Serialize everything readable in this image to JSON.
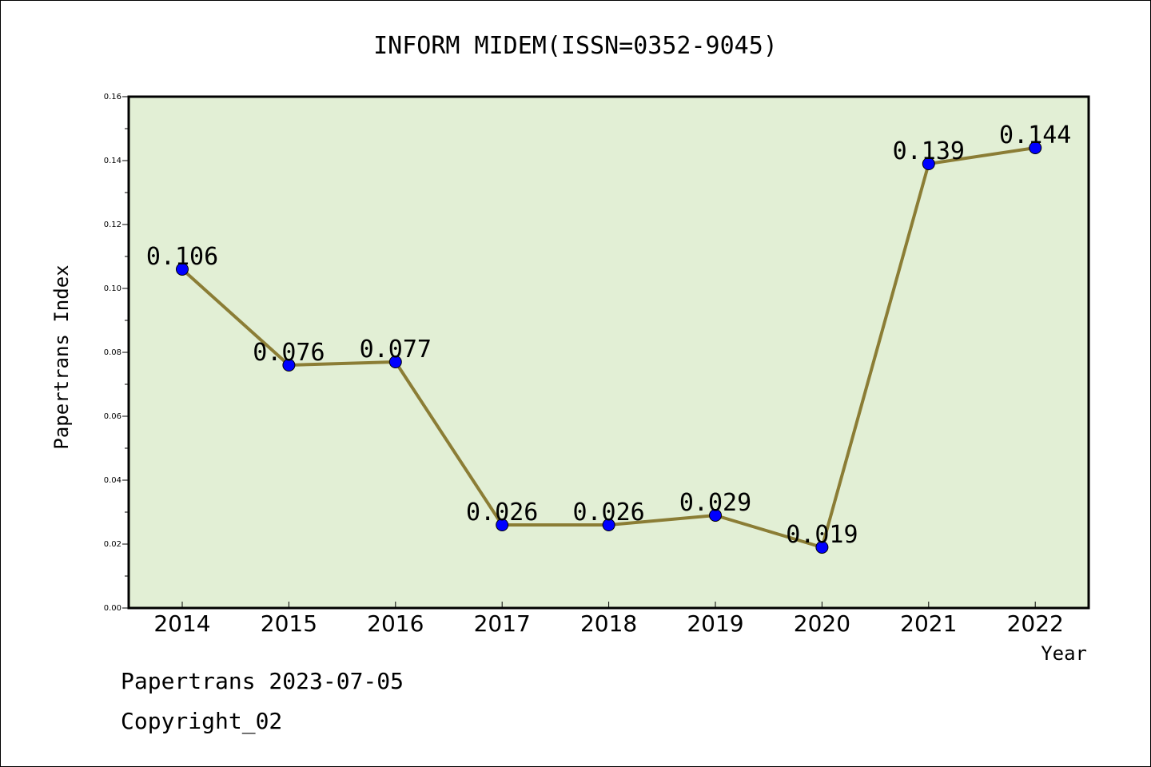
{
  "chart_data": {
    "type": "line",
    "title": "INFORM MIDEM(ISSN=0352-9045)",
    "xlabel": "Year",
    "ylabel": "Papertrans Index",
    "categories": [
      "2014",
      "2015",
      "2016",
      "2017",
      "2018",
      "2019",
      "2020",
      "2021",
      "2022"
    ],
    "series": [
      {
        "values": [
          0.106,
          0.076,
          0.077,
          0.026,
          0.026,
          0.029,
          0.019,
          0.139,
          0.144
        ],
        "labels": [
          "0.106",
          "0.076",
          "0.077",
          "0.026",
          "0.026",
          "0.029",
          "0.019",
          "0.139",
          "0.144"
        ],
        "line_color": "#8b7d35",
        "marker_color": "#0000ff"
      }
    ],
    "ylim": [
      0,
      0.16
    ],
    "yticks": [
      "0.00",
      "0.02",
      "0.04",
      "0.06",
      "0.08",
      "0.10",
      "0.12",
      "0.14",
      "0.16"
    ],
    "plot_background": "#e2efd5",
    "grid": false,
    "legend": "none"
  },
  "footer": {
    "date_line": "Papertrans 2023-07-05",
    "copyright": "Copyright_02"
  }
}
